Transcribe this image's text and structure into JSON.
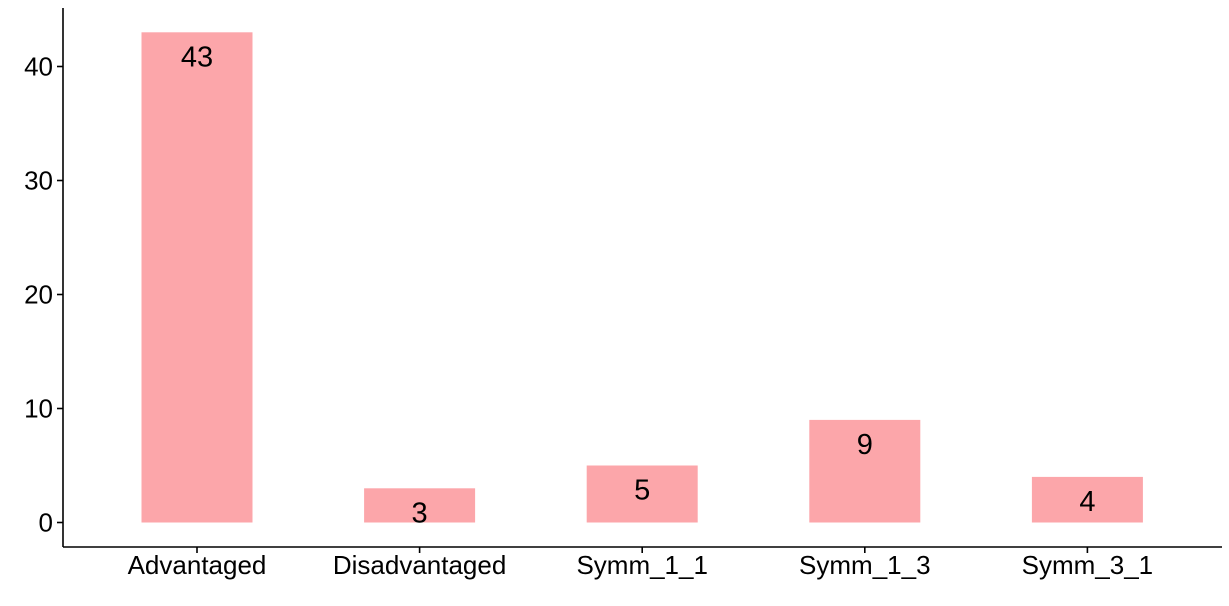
{
  "chart_data": {
    "type": "bar",
    "categories": [
      "Advantaged",
      "Disadvantaged",
      "Symm_1_1",
      "Symm_1_3",
      "Symm_3_1"
    ],
    "values": [
      43,
      3,
      5,
      9,
      4
    ],
    "data_labels": [
      "43",
      "3",
      "5",
      "9",
      "4"
    ],
    "title": "",
    "xlabel": "",
    "ylabel": "",
    "ylim": [
      0,
      45.15
    ],
    "yticks": [
      0,
      10,
      20,
      30,
      40
    ],
    "ytick_labels": [
      "0",
      "10",
      "20",
      "30",
      "40"
    ],
    "grid": false,
    "legend": "none",
    "colors": {
      "bar": "#FCA6AA",
      "axis": "#000000",
      "text": "#000000"
    }
  }
}
